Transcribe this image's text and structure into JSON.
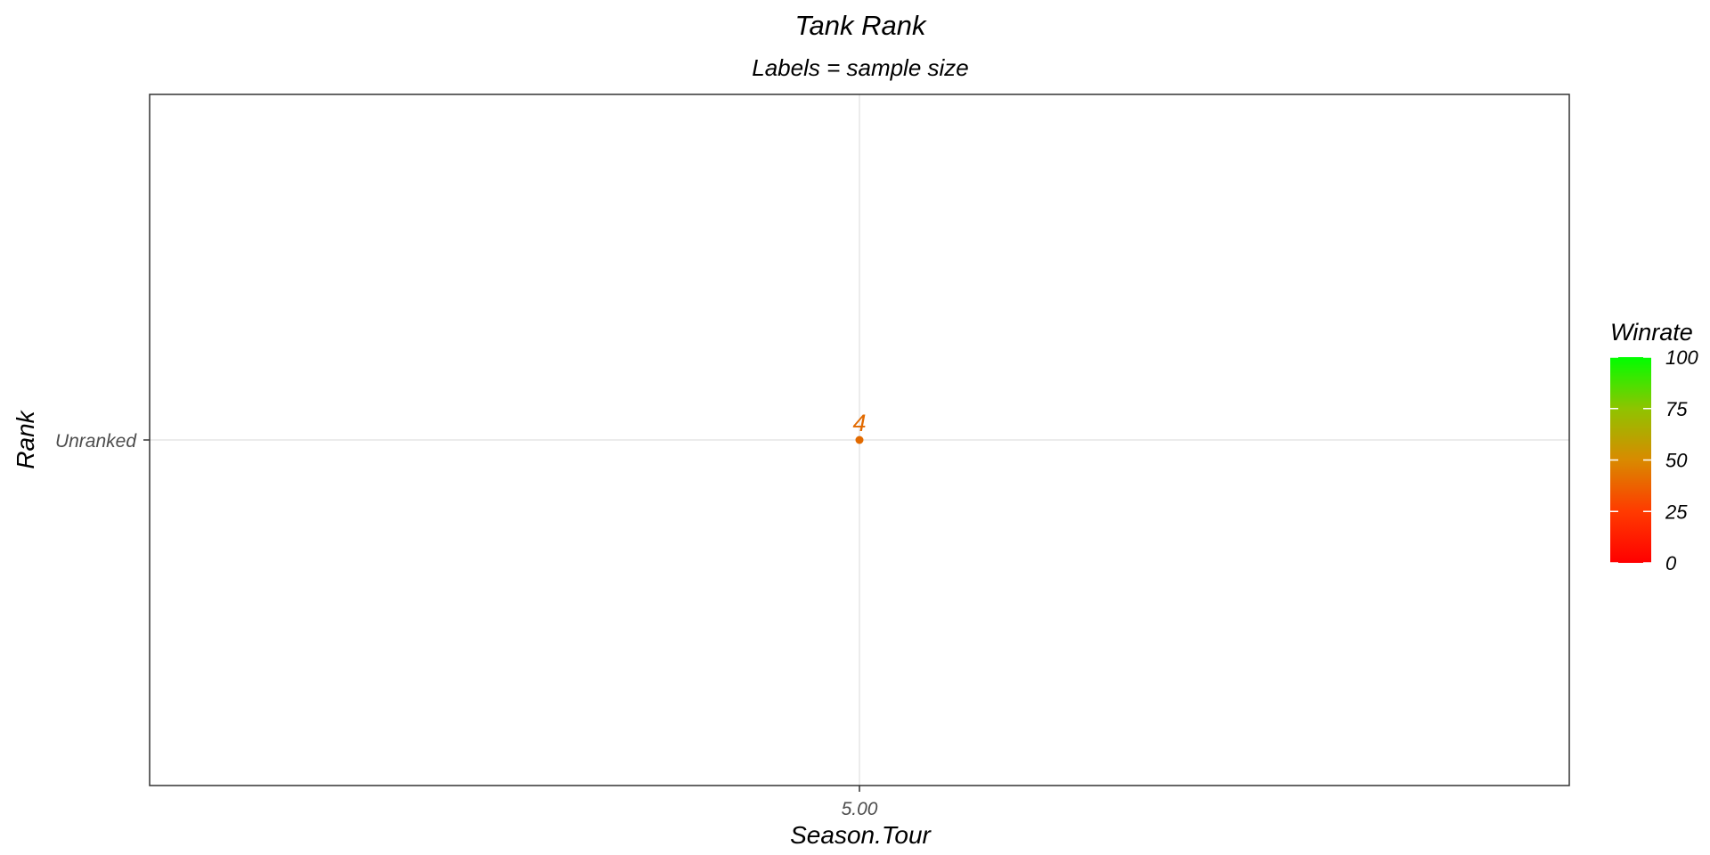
{
  "chart_data": {
    "type": "scatter",
    "title": "Tank Rank",
    "subtitle": "Labels = sample size",
    "xlabel": "Season.Tour",
    "ylabel": "Rank",
    "x_ticks": [
      "5.00"
    ],
    "y_ticks": [
      "Unranked"
    ],
    "grid": true,
    "points": [
      {
        "x": "5.00",
        "y": "Unranked",
        "label": "4",
        "winrate": 25,
        "color": "#e26a00"
      }
    ],
    "legend": {
      "title": "Winrate",
      "position": "right",
      "ticks": [
        "100",
        "75",
        "50",
        "25",
        "0"
      ],
      "range": [
        0,
        100
      ],
      "color_low": "#ff0000",
      "color_high": "#00ff00"
    }
  }
}
